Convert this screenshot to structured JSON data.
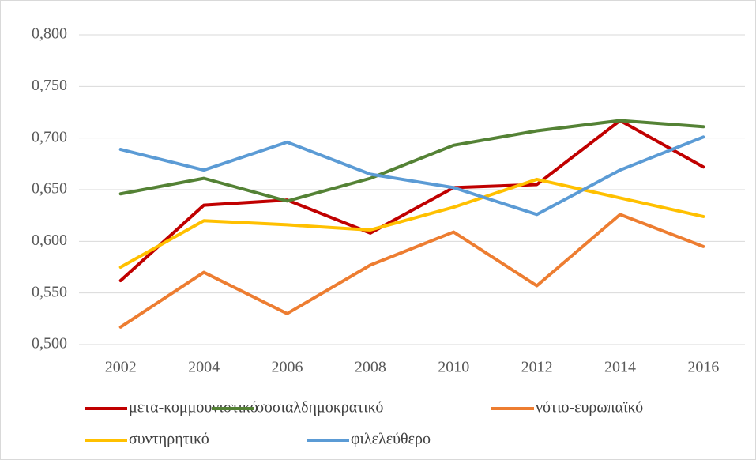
{
  "chart_data": {
    "type": "line",
    "categories": [
      "2002",
      "2004",
      "2006",
      "2008",
      "2010",
      "2012",
      "2014",
      "2016"
    ],
    "series": [
      {
        "name": "μετα-κομμουνιστικό",
        "color": "#c00000",
        "values": [
          0.562,
          0.635,
          0.64,
          0.608,
          0.652,
          0.655,
          0.717,
          0.672
        ]
      },
      {
        "name": "σοσιαλδημοκρατικό",
        "color": "#548235",
        "values": [
          0.646,
          0.661,
          0.639,
          0.661,
          0.693,
          0.707,
          0.717,
          0.711
        ]
      },
      {
        "name": "νότιο-ευρωπαϊκό",
        "color": "#ed7d31",
        "values": [
          0.517,
          0.57,
          0.53,
          0.577,
          0.609,
          0.557,
          0.626,
          0.595
        ]
      },
      {
        "name": "συντηρητικό",
        "color": "#ffc000",
        "values": [
          0.575,
          0.62,
          0.616,
          0.611,
          0.633,
          0.66,
          0.642,
          0.624
        ]
      },
      {
        "name": "φιλελεύθερο",
        "color": "#5b9bd5",
        "values": [
          0.689,
          0.669,
          0.696,
          0.665,
          0.652,
          0.626,
          0.669,
          0.701
        ]
      }
    ],
    "ylim": [
      0.5,
      0.8
    ],
    "yticks": [
      {
        "value": 0.5,
        "label": "0,500"
      },
      {
        "value": 0.55,
        "label": "0,550"
      },
      {
        "value": 0.6,
        "label": "0,600"
      },
      {
        "value": 0.65,
        "label": "0,650"
      },
      {
        "value": 0.7,
        "label": "0,700"
      },
      {
        "value": 0.75,
        "label": "0,750"
      },
      {
        "value": 0.8,
        "label": "0,800"
      }
    ],
    "grid": true,
    "legend": "bottom"
  }
}
